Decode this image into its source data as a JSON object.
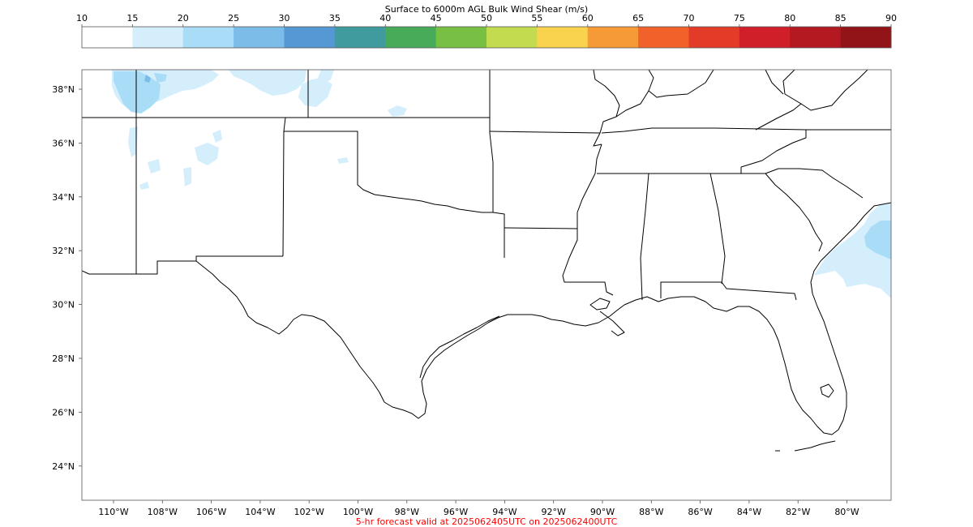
{
  "colorbar": {
    "title": "Surface to 6000m AGL Bulk Wind Shear (m/s)",
    "ticks": [
      "10",
      "15",
      "20",
      "25",
      "30",
      "35",
      "40",
      "45",
      "50",
      "55",
      "60",
      "65",
      "70",
      "75",
      "80",
      "85",
      "90"
    ],
    "colors": [
      "#ffffff",
      "#d4eefc",
      "#a9dcf7",
      "#7bbde8",
      "#5598d3",
      "#3f9b9e",
      "#47ab5a",
      "#78c043",
      "#c3db4e",
      "#f9d34d",
      "#f69a38",
      "#f1612a",
      "#e23c28",
      "#d11f2a",
      "#b31921",
      "#921419"
    ]
  },
  "map": {
    "lat_labels": [
      "38°N",
      "36°N",
      "34°N",
      "32°N",
      "30°N",
      "28°N",
      "26°N",
      "24°N"
    ],
    "lon_labels": [
      "110°W",
      "108°W",
      "106°W",
      "104°W",
      "102°W",
      "100°W",
      "98°W",
      "96°W",
      "94°W",
      "92°W",
      "90°W",
      "88°W",
      "86°W",
      "84°W",
      "82°W",
      "80°W"
    ],
    "shear_fill_colors": [
      "#d4eefc",
      "#a9dcf7",
      "#7bbde8"
    ]
  },
  "footer": {
    "caption": "5-hr forecast valid at 2025062405UTC on 2025062400UTC",
    "caption_color": "#ff0000"
  }
}
